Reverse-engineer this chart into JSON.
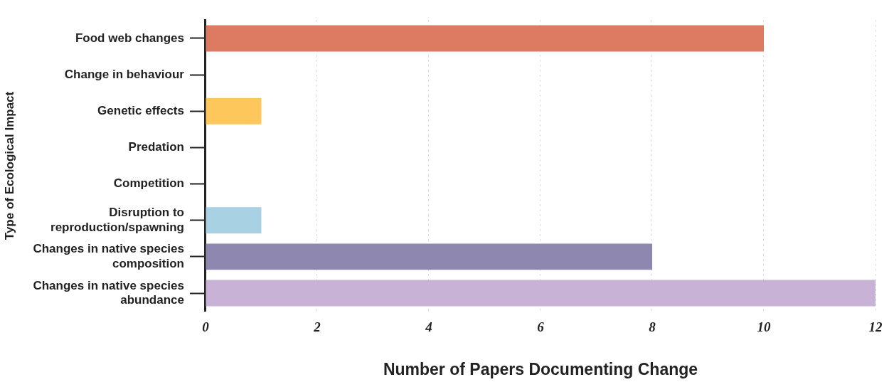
{
  "chart_data": {
    "type": "bar",
    "orientation": "horizontal",
    "xlabel": "Number of Papers Documenting Change",
    "ylabel": "Type of Ecological Impact",
    "categories": [
      "Food web changes",
      "Change in behaviour",
      "Genetic effects",
      "Predation",
      "Competition",
      "Disruption to reproduction/spawning",
      "Changes in native species composition",
      "Changes in native species abundance"
    ],
    "values": [
      10,
      0,
      1,
      0,
      0,
      1,
      8,
      12
    ],
    "colors": [
      "#dc7a62",
      null,
      "#fdc75c",
      null,
      null,
      "#a8d1e4",
      "#8e88b0",
      "#c8b3d6"
    ],
    "xlim": [
      0,
      12
    ],
    "xticks": [
      0,
      2,
      4,
      6,
      8,
      10,
      12
    ],
    "grid": "x",
    "legend": false
  }
}
